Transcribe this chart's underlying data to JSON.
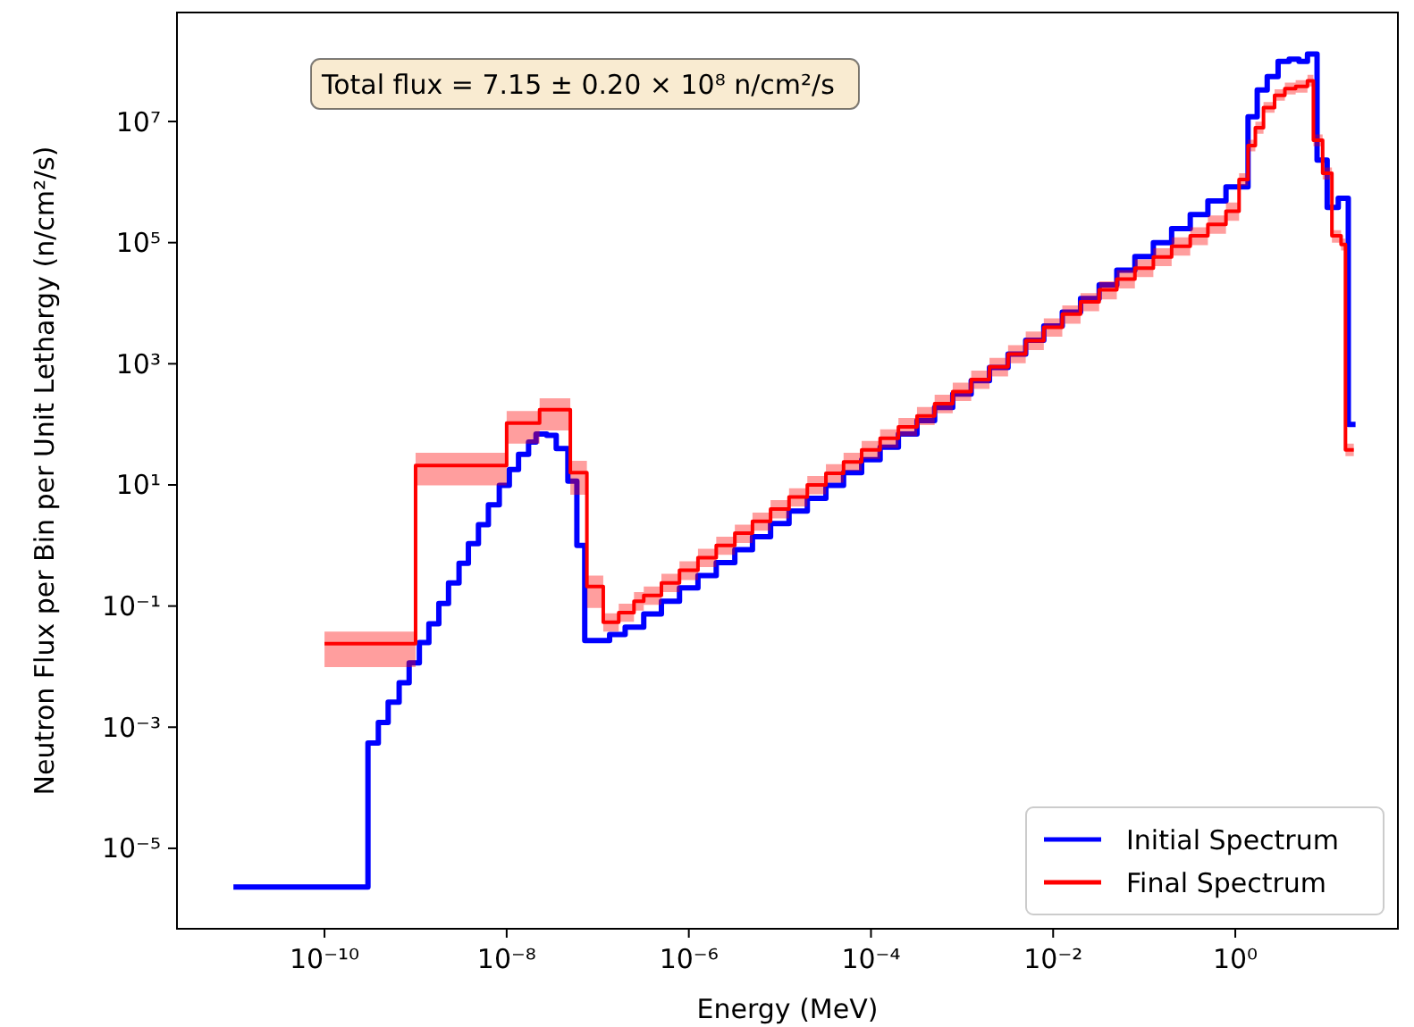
{
  "chart_data": {
    "type": "step",
    "xlabel": "Energy (MeV)",
    "ylabel": "Neutron Flux per Bin per Unit Lethargy (n/cm²/s)",
    "log": "xy",
    "grid": false,
    "legend": "bottom right",
    "annotations": [
      "Total flux = 7.15 ± 0.20 × 10⁸ n/cm²/s"
    ],
    "xlim": [
      2.4e-12,
      61
    ],
    "ylim": [
      4.7e-07,
      630000000.0
    ],
    "xticks": [
      {
        "value": 1e-10,
        "label": "10⁻¹⁰"
      },
      {
        "value": 1e-08,
        "label": "10⁻⁸"
      },
      {
        "value": 1e-06,
        "label": "10⁻⁶"
      },
      {
        "value": 0.0001,
        "label": "10⁻⁴"
      },
      {
        "value": 0.01,
        "label": "10⁻²"
      },
      {
        "value": 1,
        "label": "10⁰"
      }
    ],
    "yticks": [
      {
        "value": 1e-05,
        "label": "10⁻⁵"
      },
      {
        "value": 0.001,
        "label": "10⁻³"
      },
      {
        "value": 0.1,
        "label": "10⁻¹"
      },
      {
        "value": 10,
        "label": "10¹"
      },
      {
        "value": 1000,
        "label": "10³"
      },
      {
        "value": 100000,
        "label": "10⁵"
      },
      {
        "value": 10000000,
        "label": "10⁷"
      }
    ],
    "series": [
      {
        "name": "Initial Spectrum",
        "color": "#0000ff",
        "x": [
          1e-11,
          3e-10,
          3.9e-10,
          5e-10,
          6.6e-10,
          8.5e-10,
          1.1e-09,
          1.4e-09,
          1.8e-09,
          2.3e-09,
          3e-09,
          3.8e-09,
          4.9e-09,
          6.3e-09,
          8.3e-09,
          1.07e-08,
          1.35e-08,
          1.74e-08,
          2.1e-08,
          2.75e-08,
          3.5e-08,
          4.7e-08,
          5.9e-08,
          7.2e-08,
          1.35e-07,
          2e-07,
          3.2e-07,
          5e-07,
          7.9e-07,
          1.26e-06,
          2e-06,
          3.2e-06,
          5e-06,
          7.9e-06,
          1.26e-05,
          2e-05,
          3.2e-05,
          5e-05,
          7.9e-05,
          0.000126,
          0.0002,
          0.00032,
          0.0005,
          0.00079,
          0.00126,
          0.002,
          0.0032,
          0.005,
          0.0079,
          0.0126,
          0.02,
          0.032,
          0.05,
          0.079,
          0.126,
          0.2,
          0.32,
          0.5,
          0.79,
          1.38,
          1.74,
          2.24,
          2.95,
          3.9,
          5.0,
          6.2,
          7.9,
          10.2,
          13.5,
          17.4,
          20.9
        ],
        "values": [
          2.3e-06,
          0.00055,
          0.0012,
          0.0026,
          0.0054,
          0.0115,
          0.025,
          0.051,
          0.11,
          0.24,
          0.51,
          1.07,
          2.2,
          4.7,
          9.8,
          18,
          32,
          51,
          69,
          66,
          40,
          11.5,
          1.0,
          0.027,
          0.034,
          0.045,
          0.074,
          0.12,
          0.2,
          0.32,
          0.52,
          0.85,
          1.4,
          2.3,
          3.7,
          6.0,
          9.8,
          16,
          26,
          42,
          69,
          115,
          190,
          316,
          525,
          870,
          1450,
          2450,
          4200,
          7100,
          12000,
          20000,
          35000,
          59000,
          100000,
          170000,
          290000,
          490000,
          830000,
          12000000.0,
          33000000.0,
          55000000.0,
          98000000.0,
          107000000.0,
          98000000.0,
          130000000.0,
          2300000.0,
          380000.0,
          540000.0,
          100,
          100
        ]
      },
      {
        "name": "Final Spectrum",
        "color": "#ff0000",
        "x": [
          1e-10,
          1e-09,
          1e-08,
          2.3e-08,
          5e-08,
          7.6e-08,
          1.15e-07,
          1.7e-07,
          2.5e-07,
          3.2e-07,
          5e-07,
          7.9e-07,
          1.26e-06,
          2e-06,
          3.2e-06,
          5e-06,
          7.9e-06,
          1.26e-05,
          2e-05,
          3.2e-05,
          5e-05,
          7.9e-05,
          0.000126,
          0.0002,
          0.00032,
          0.0005,
          0.00079,
          0.00126,
          0.002,
          0.0032,
          0.005,
          0.0079,
          0.0126,
          0.02,
          0.032,
          0.05,
          0.079,
          0.126,
          0.2,
          0.32,
          0.5,
          0.79,
          1.1,
          1.38,
          1.66,
          2.04,
          2.7,
          3.5,
          4.6,
          6.2,
          7.2,
          9.1,
          11.5,
          14.5,
          16.2,
          20
        ],
        "values": [
          0.024,
          21,
          105,
          174,
          16,
          0.21,
          0.054,
          0.078,
          0.12,
          0.15,
          0.24,
          0.39,
          0.63,
          1.0,
          1.6,
          2.5,
          4.0,
          6.3,
          10,
          15.5,
          24,
          38,
          59,
          91,
          138,
          219,
          347,
          550,
          890,
          1450,
          2400,
          4000,
          6600,
          10500,
          16600,
          25000,
          38000,
          58000,
          87000,
          130000,
          200000,
          330000,
          1100000.0,
          4000000.0,
          7900000.0,
          17000000.0,
          27000000.0,
          35000000.0,
          38000000.0,
          47000000.0,
          4900000.0,
          1400000.0,
          130000.0,
          93000.0,
          38,
          38
        ],
        "lower": [
          0.0098,
          9.8,
          48,
          79,
          6.9,
          0.093,
          0.038,
          0.055,
          0.084,
          0.105,
          0.17,
          0.27,
          0.44,
          0.7,
          1.1,
          1.75,
          2.8,
          4.4,
          7,
          10.9,
          17,
          27,
          41,
          64,
          97,
          153,
          243,
          385,
          620,
          1020,
          1680,
          2800,
          4600,
          7400,
          11600,
          17500,
          27000,
          41000,
          61000,
          91000,
          140000,
          230000,
          880000,
          3200000.0,
          6300000.0,
          14000000.0,
          22000000.0,
          28000000.0,
          30000000.0,
          38000000.0,
          3900000.0,
          1100000.0,
          100000.0,
          74000.0,
          30,
          30
        ],
        "upper": [
          0.038,
          34,
          166,
          269,
          25,
          0.32,
          0.076,
          0.109,
          0.17,
          0.21,
          0.34,
          0.55,
          0.88,
          1.4,
          2.2,
          3.5,
          5.6,
          8.8,
          14,
          22,
          34,
          53,
          83,
          127,
          193,
          307,
          486,
          770,
          1250,
          2030,
          3400,
          5600,
          9200,
          14700,
          23000,
          35000,
          53000,
          81000,
          122000,
          180000,
          280000,
          460000,
          1400000.0,
          5000000.0,
          9900000.0,
          21000000.0,
          34000000.0,
          44000000.0,
          48000000.0,
          59000000.0,
          6100000.0,
          1750000.0,
          160000.0,
          116000.0,
          48,
          48
        ]
      }
    ]
  }
}
